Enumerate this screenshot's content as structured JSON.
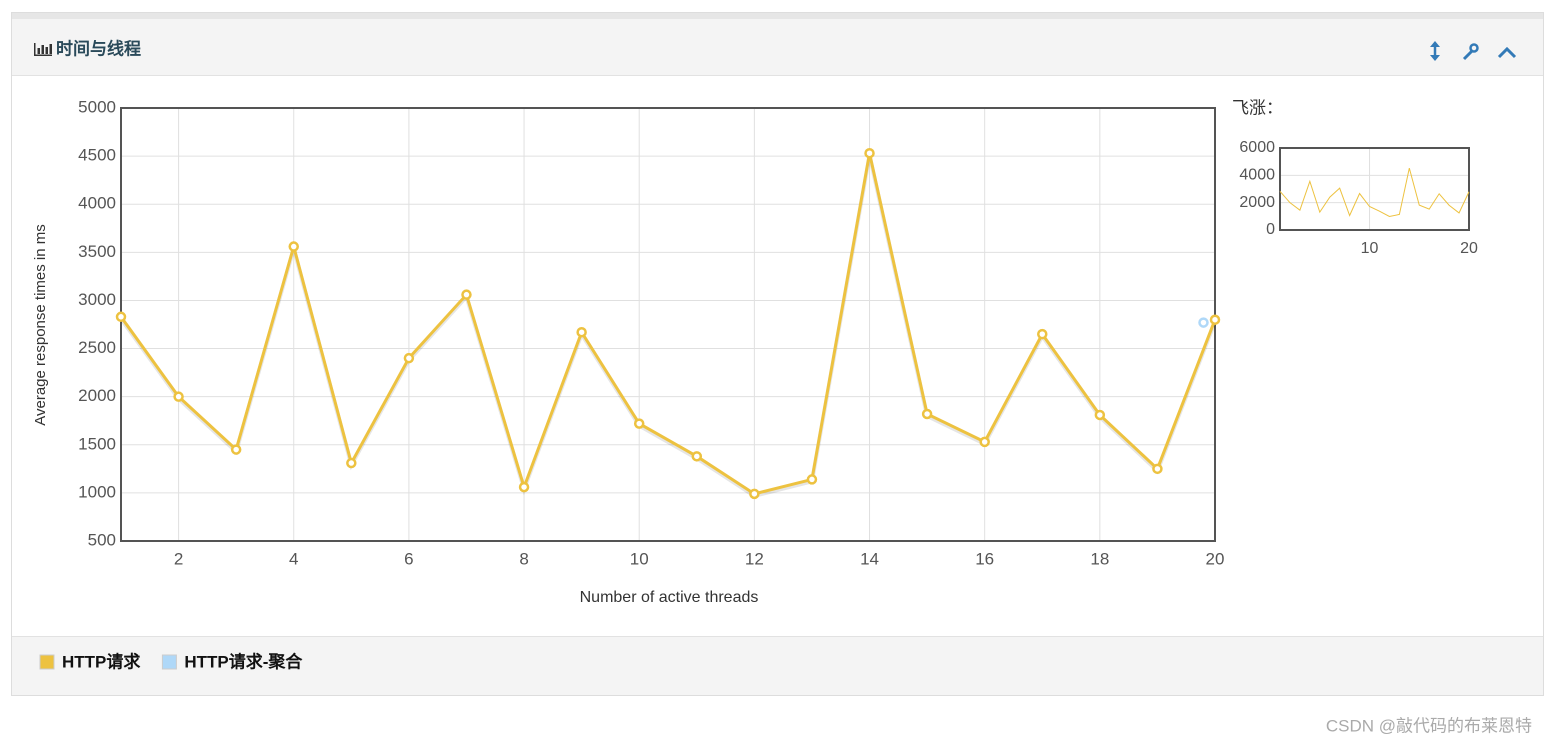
{
  "panel": {
    "title": "时间与线程"
  },
  "chart_data": {
    "type": "line",
    "x_label": "Number of active threads",
    "y_label": "Average response times in ms",
    "x": [
      1,
      2,
      3,
      4,
      5,
      6,
      7,
      8,
      9,
      10,
      11,
      12,
      13,
      14,
      15,
      16,
      17,
      18,
      19,
      20
    ],
    "series": [
      {
        "name": "HTTP请求",
        "color": "#edc240",
        "values": [
          2830,
          2000,
          1450,
          3560,
          1310,
          2400,
          3060,
          1060,
          2670,
          1720,
          1380,
          990,
          1140,
          4530,
          1820,
          1530,
          2650,
          1810,
          1250,
          2800
        ]
      },
      {
        "name": "HTTP请求-聚合",
        "color": "#afd8f8",
        "x": [
          19.8
        ],
        "values": [
          2770
        ]
      }
    ],
    "xlim": [
      1,
      20
    ],
    "xticks": [
      2,
      4,
      6,
      8,
      10,
      12,
      14,
      16,
      18,
      20
    ],
    "ylim": [
      500,
      5000
    ],
    "yticks": [
      500,
      1000,
      1500,
      2000,
      2500,
      3000,
      3500,
      4000,
      4500,
      5000
    ],
    "grid": true,
    "overview": {
      "label": "飞涨：",
      "xlim": [
        1,
        20
      ],
      "xticks": [
        10,
        20
      ],
      "ylim": [
        0,
        6000
      ],
      "yticks": [
        0,
        2000,
        4000,
        6000
      ]
    }
  },
  "watermark": "CSDN @敲代码的布莱恩特"
}
